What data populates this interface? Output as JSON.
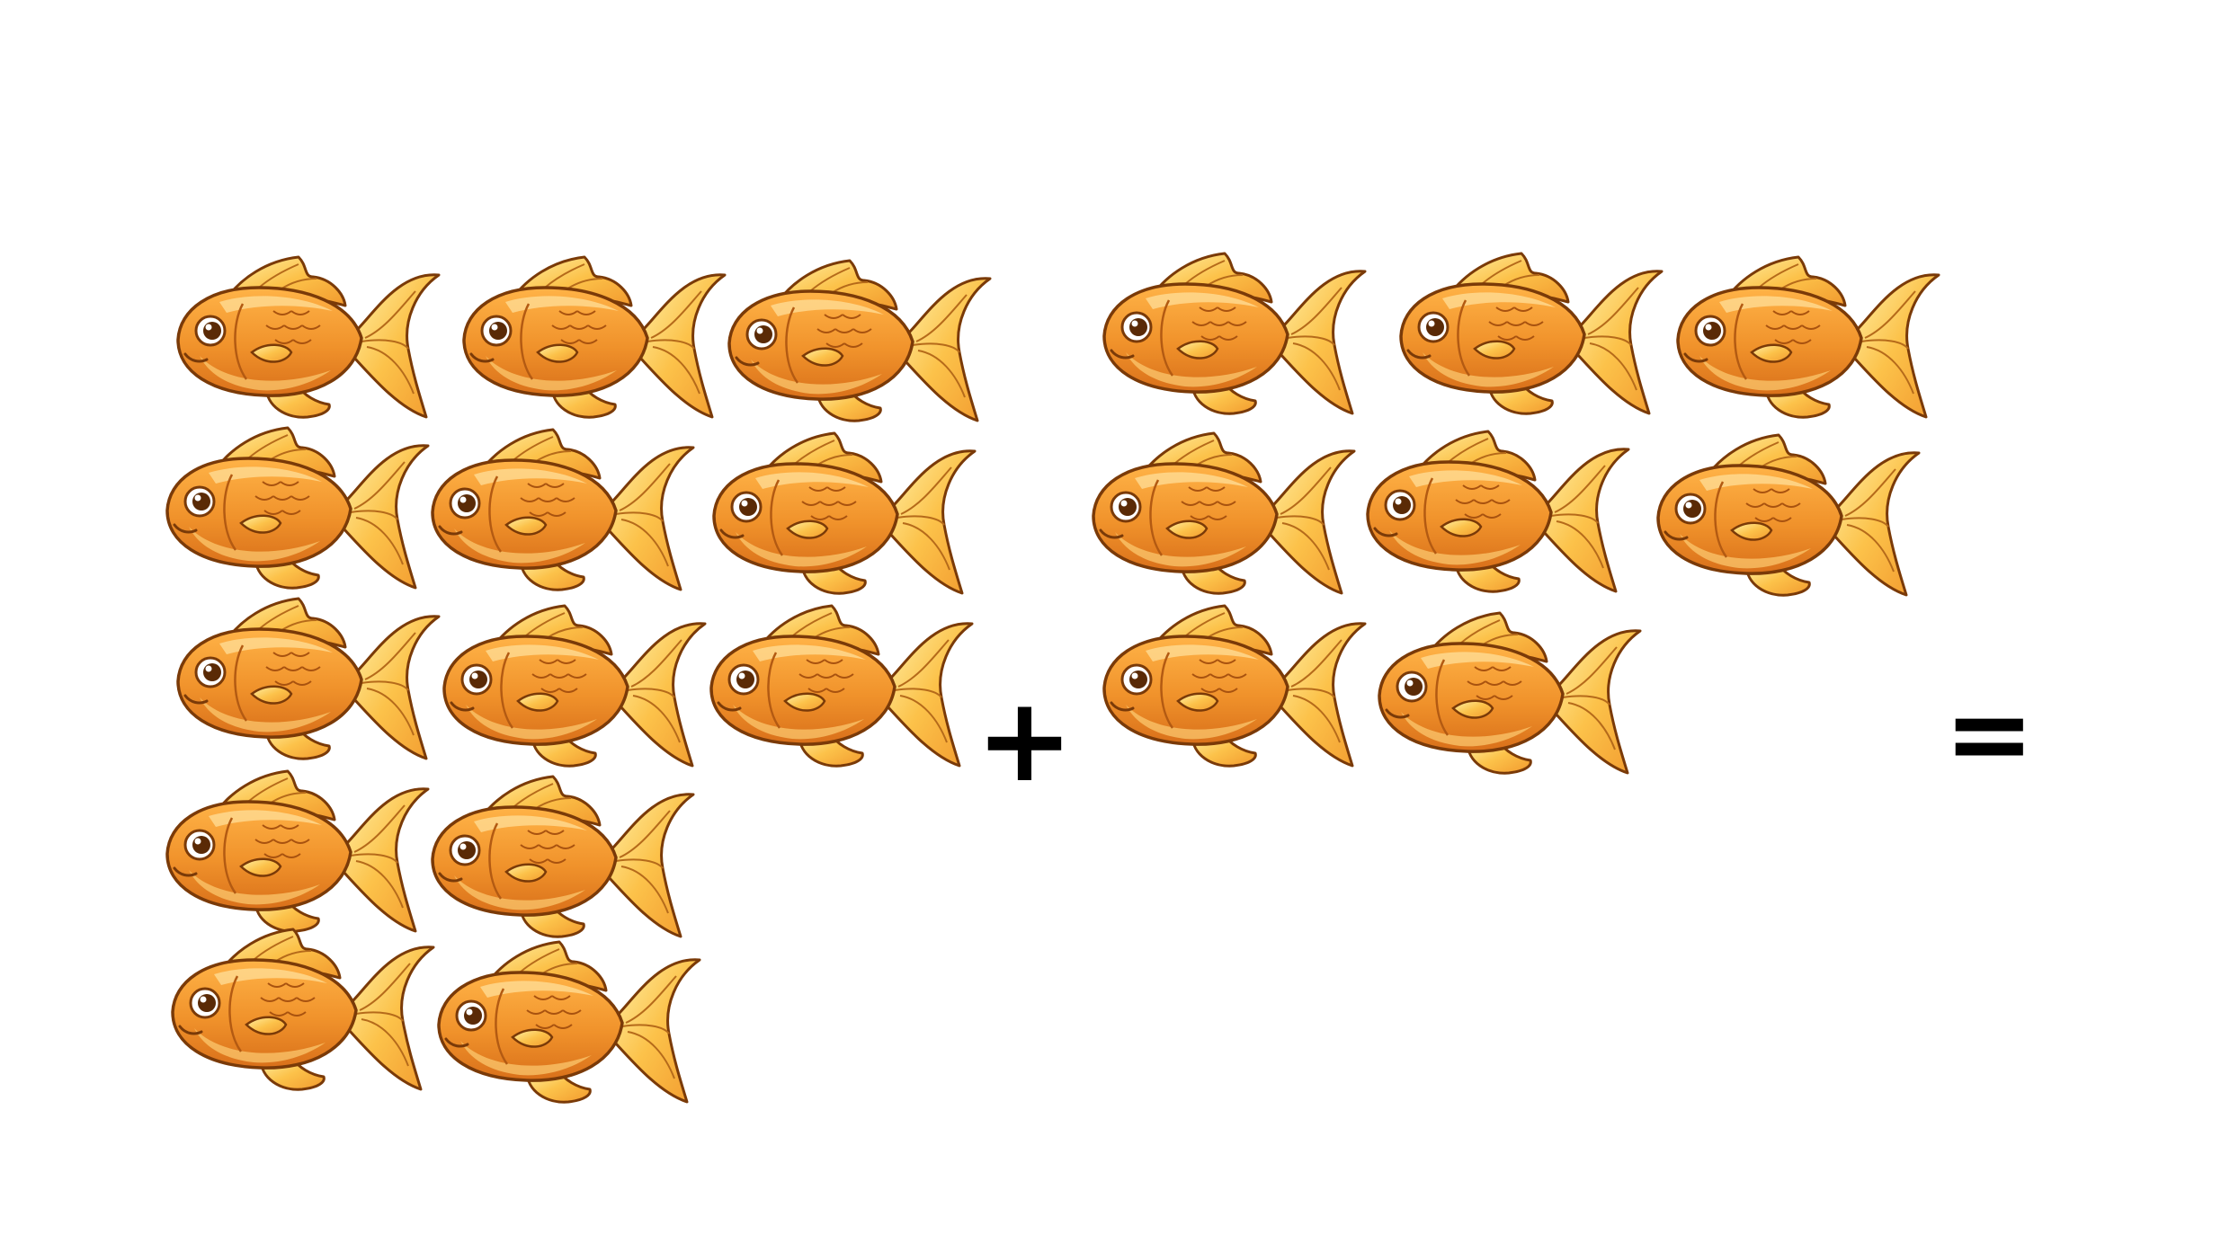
{
  "problem": {
    "operator_plus": "+",
    "operator_equals": "=",
    "fish_icon": "goldfish-icon",
    "colors": {
      "body": "#f0922b",
      "body_highlight": "#ffb347",
      "fin": "#fcc24a",
      "outline": "#7a3a08",
      "operator": "#000000"
    }
  },
  "left_group": {
    "count": 13,
    "rows": [
      3,
      3,
      3,
      2,
      2
    ]
  },
  "right_group": {
    "count": 8,
    "rows": [
      3,
      3,
      2
    ]
  }
}
